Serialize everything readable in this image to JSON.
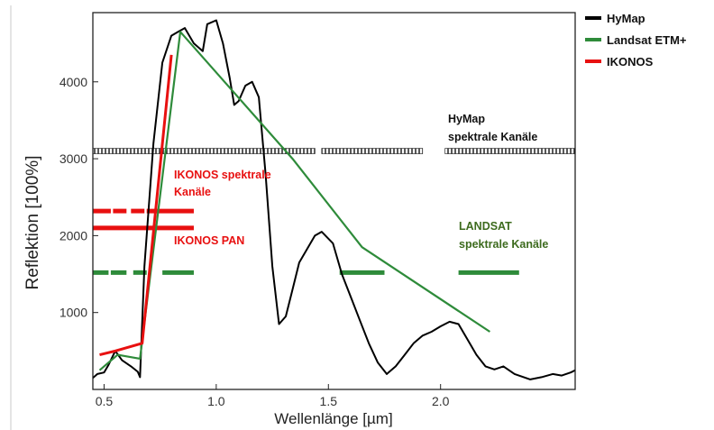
{
  "chart_data": {
    "type": "line",
    "xlabel": "Wellenlänge [µm]",
    "ylabel": "Reflektion [100%]",
    "x_ticks": [
      "0.5",
      "1.0",
      "1.5",
      "2.0"
    ],
    "y_ticks": [
      "1000",
      "2000",
      "3000",
      "4000"
    ],
    "x_tick_values": [
      0.5,
      1.0,
      1.5,
      2.0
    ],
    "y_tick_values": [
      1000,
      2000,
      3000,
      4000
    ],
    "xlim": [
      0.45,
      2.6
    ],
    "ylim": [
      0,
      4900
    ],
    "legend_position": "outside-top-right",
    "series": [
      {
        "name": "HyMap",
        "color": "#000000",
        "x": [
          0.45,
          0.47,
          0.5,
          0.52,
          0.55,
          0.58,
          0.62,
          0.65,
          0.66,
          0.68,
          0.72,
          0.76,
          0.8,
          0.83,
          0.86,
          0.9,
          0.94,
          0.96,
          1.0,
          1.03,
          1.06,
          1.08,
          1.1,
          1.13,
          1.16,
          1.19,
          1.22,
          1.25,
          1.28,
          1.31,
          1.34,
          1.37,
          1.4,
          1.44,
          1.47,
          1.52,
          1.56,
          1.6,
          1.64,
          1.68,
          1.72,
          1.76,
          1.8,
          1.84,
          1.88,
          1.92,
          1.96,
          2.0,
          2.04,
          2.08,
          2.12,
          2.16,
          2.2,
          2.24,
          2.28,
          2.33,
          2.4,
          2.45,
          2.5,
          2.54,
          2.58,
          2.6
        ],
        "y": [
          150,
          200,
          220,
          320,
          500,
          380,
          300,
          230,
          160,
          1600,
          3200,
          4250,
          4600,
          4650,
          4700,
          4500,
          4400,
          4750,
          4800,
          4500,
          4050,
          3700,
          3750,
          3950,
          4000,
          3800,
          2800,
          1600,
          850,
          950,
          1300,
          1650,
          1800,
          2000,
          2050,
          1900,
          1500,
          1200,
          900,
          600,
          350,
          200,
          300,
          450,
          600,
          700,
          750,
          820,
          880,
          850,
          650,
          450,
          300,
          260,
          300,
          200,
          130,
          160,
          200,
          180,
          220,
          250
        ]
      },
      {
        "name": "Landsat ETM+",
        "color": "#2e8b3a",
        "x": [
          0.48,
          0.56,
          0.66,
          0.84,
          1.34,
          1.65,
          2.22
        ],
        "y": [
          250,
          450,
          400,
          4650,
          3000,
          1850,
          750
        ]
      },
      {
        "name": "IKONOS",
        "color": "#e81010",
        "x": [
          0.48,
          0.55,
          0.67,
          0.8
        ],
        "y": [
          450,
          500,
          600,
          4350
        ]
      }
    ],
    "bands": [
      {
        "label": "HyMap spektrale Kanäle",
        "color": "#000000",
        "style": "hatched",
        "y": 3100,
        "segments": [
          [
            0.45,
            1.44
          ],
          [
            1.47,
            1.92
          ],
          [
            2.02,
            2.6
          ]
        ]
      },
      {
        "label": "IKONOS spektrale Kanäle",
        "color": "#e81010",
        "style": "solid",
        "y": 2320,
        "segments": [
          [
            0.45,
            0.53
          ],
          [
            0.54,
            0.6
          ],
          [
            0.62,
            0.68
          ],
          [
            0.69,
            0.9
          ]
        ]
      },
      {
        "label": "IKONOS PAN",
        "color": "#e81010",
        "style": "solid",
        "y": 2100,
        "segments": [
          [
            0.45,
            0.9
          ]
        ]
      },
      {
        "label": "LANDSAT spektrale Kanäle",
        "color": "#2e8b3a",
        "style": "solid",
        "y": 1520,
        "segments": [
          [
            0.45,
            0.52
          ],
          [
            0.53,
            0.6
          ],
          [
            0.63,
            0.69
          ],
          [
            0.76,
            0.9
          ],
          [
            1.55,
            1.75
          ],
          [
            2.08,
            2.35
          ]
        ]
      }
    ],
    "annotations": {
      "hymap_bands": [
        "HyMap",
        "spektrale Kanäle"
      ],
      "ikonos_bands": [
        "IKONOS spektrale",
        "Kanäle"
      ],
      "ikonos_pan": "IKONOS PAN",
      "landsat_bands": [
        "LANDSAT",
        "spektrale Kanäle"
      ]
    }
  }
}
